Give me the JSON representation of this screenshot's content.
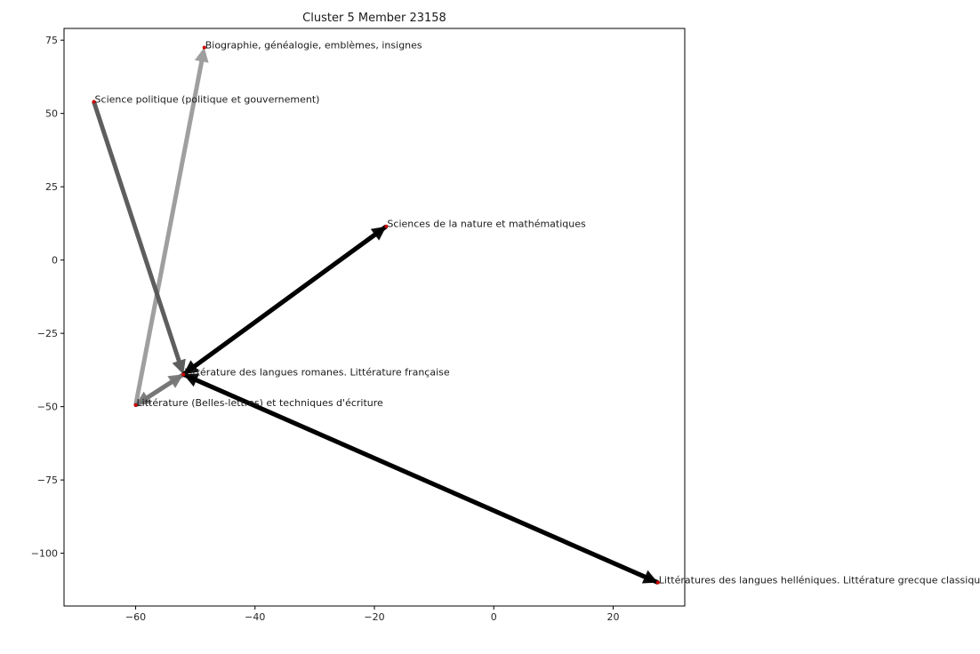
{
  "chart_data": {
    "type": "scatter",
    "title": "Cluster 5 Member 23158",
    "xlabel": "",
    "ylabel": "",
    "xlim": [
      -72,
      32
    ],
    "ylim": [
      -118,
      79
    ],
    "xticks": [
      -60,
      -40,
      -20,
      0,
      20
    ],
    "yticks": [
      75,
      50,
      25,
      0,
      -25,
      -50,
      -75,
      -100
    ],
    "xtick_labels": [
      "−60",
      "−40",
      "−20",
      "0",
      "20"
    ],
    "ytick_labels": [
      "75",
      "50",
      "25",
      "0",
      "−25",
      "−50",
      "−75",
      "−100"
    ],
    "grid": false,
    "points": [
      {
        "label": "Biographie, généalogie, emblèmes, insignes",
        "x": -48.5,
        "y": 72.5
      },
      {
        "label": "Science politique (politique et gouvernement)",
        "x": -67.0,
        "y": 54.0
      },
      {
        "label": "Sciences de la nature et mathématiques",
        "x": -18.0,
        "y": 11.5
      },
      {
        "label": "Littérature des langues romanes. Littérature française",
        "x": -52.0,
        "y": -39.0
      },
      {
        "label": "Littérature (Belles-lettres) et techniques d'écriture",
        "x": -60.0,
        "y": -49.5
      },
      {
        "label": "Littératures des langues helléniques. Littérature grecque classique",
        "x": 27.5,
        "y": -110.0
      }
    ],
    "arrows": [
      {
        "from": 4,
        "to": 0,
        "color": "#9a9a9a"
      },
      {
        "from": 1,
        "to": 3,
        "color": "#555555"
      },
      {
        "from": 4,
        "to": 3,
        "color": "#777777"
      },
      {
        "from": 3,
        "to": 4,
        "color": "#777777"
      },
      {
        "from": 3,
        "to": 2,
        "color": "#000000"
      },
      {
        "from": 2,
        "to": 3,
        "color": "#000000"
      },
      {
        "from": 3,
        "to": 5,
        "color": "#000000"
      },
      {
        "from": 5,
        "to": 3,
        "color": "#000000"
      }
    ],
    "point_color": "#cc0000",
    "frame_color": "#ffffff"
  }
}
